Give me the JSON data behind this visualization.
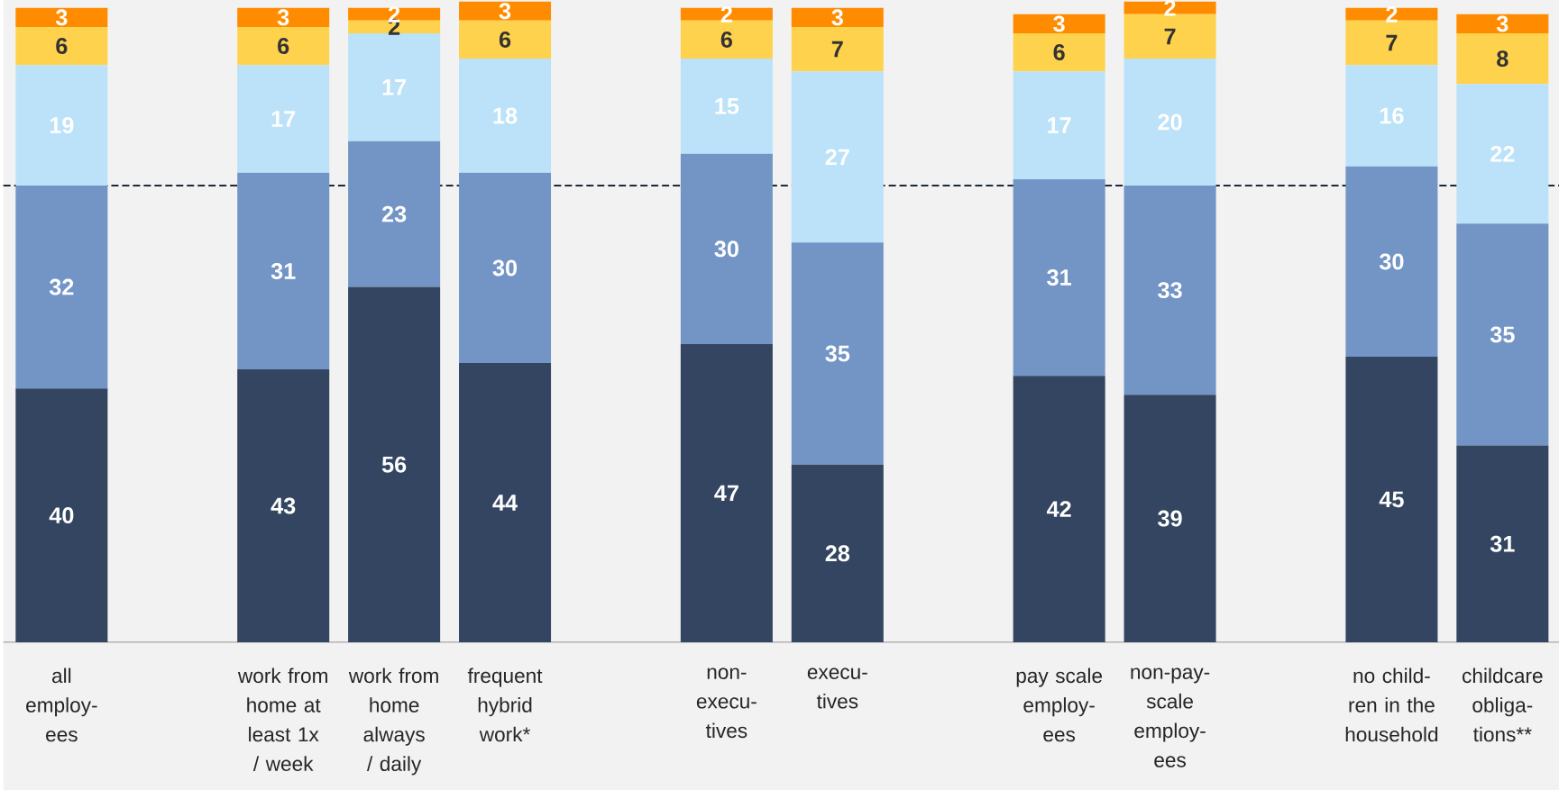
{
  "chart_data": {
    "type": "bar",
    "stacked": true,
    "data_labels": true,
    "categories": [
      "all employ-ees",
      null,
      "work from home at least 1x / week",
      "work from home always / daily",
      "frequent hybrid work*",
      null,
      "non-execu-tives",
      "execu-tives",
      null,
      "pay scale employ-ees",
      "non-pay-scale employ-ees",
      null,
      "no child-ren in the household",
      "childcare obliga-tions**"
    ],
    "series": [
      {
        "color": "#334560",
        "values": [
          40,
          null,
          43,
          56,
          44,
          null,
          47,
          28,
          null,
          42,
          39,
          null,
          45,
          31
        ]
      },
      {
        "color": "#7295c6",
        "values": [
          32,
          null,
          31,
          23,
          30,
          null,
          30,
          35,
          null,
          31,
          33,
          null,
          30,
          35
        ]
      },
      {
        "color": "#bbe2f8",
        "values": [
          19,
          null,
          17,
          17,
          18,
          null,
          15,
          27,
          null,
          17,
          20,
          null,
          16,
          22
        ]
      },
      {
        "color": "#ffd24d",
        "values": [
          6,
          null,
          6,
          2,
          6,
          null,
          6,
          7,
          null,
          6,
          7,
          null,
          7,
          8
        ]
      },
      {
        "color": "#ff8c00",
        "values": [
          3,
          null,
          3,
          2,
          3,
          null,
          2,
          3,
          null,
          3,
          2,
          null,
          2,
          3
        ]
      }
    ],
    "ylim": [
      0,
      101
    ],
    "ref_lines": [
      {
        "axis": "y",
        "value": 72,
        "color": "#1c2a3a",
        "line_style": "dashed"
      }
    ]
  }
}
